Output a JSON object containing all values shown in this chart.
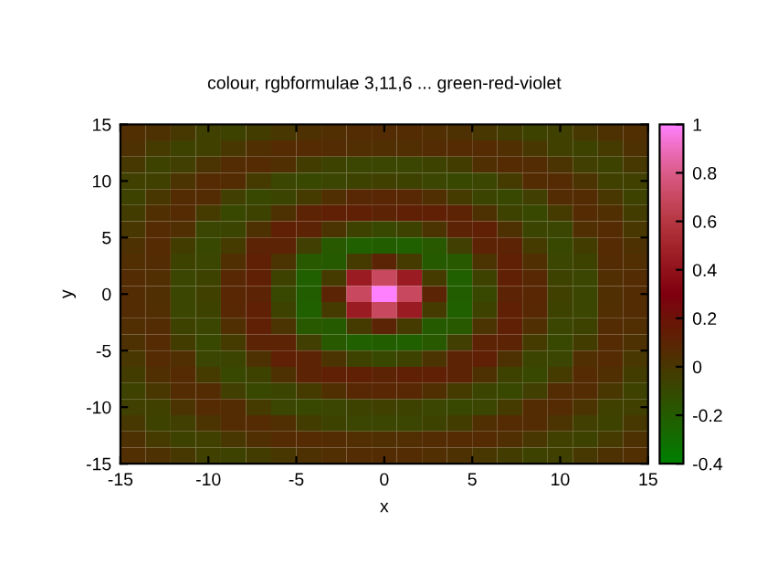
{
  "chart_data": {
    "type": "heatmap",
    "title": "colour, rgbformulae 3,11,6 ... green-red-violet",
    "xlabel": "x",
    "ylabel": "y",
    "xlim": [
      -15,
      15
    ],
    "ylim": [
      -15,
      15
    ],
    "xticks": [
      -15,
      -10,
      -5,
      0,
      5,
      10,
      15
    ],
    "yticks": [
      -15,
      -10,
      -5,
      0,
      5,
      10,
      15
    ],
    "clim": [
      -0.4,
      1
    ],
    "cticks": [
      -0.4,
      -0.2,
      0,
      0.2,
      0.4,
      0.6,
      0.8,
      1
    ],
    "grid": false,
    "cells": [
      [
        0.05,
        0.03,
        -0.01,
        -0.05,
        -0.06,
        -0.03,
        0.0,
        0.03,
        0.05,
        0.06,
        0.06,
        0.06,
        0.05,
        0.03,
        0.0,
        -0.03,
        -0.06,
        -0.05,
        -0.01,
        0.03,
        0.05
      ],
      [
        0.03,
        -0.02,
        -0.06,
        -0.05,
        0.0,
        0.04,
        0.07,
        0.07,
        0.06,
        0.05,
        0.04,
        0.05,
        0.06,
        0.07,
        0.07,
        0.04,
        0.0,
        -0.05,
        -0.06,
        -0.02,
        0.03
      ],
      [
        -0.01,
        -0.06,
        -0.04,
        0.02,
        0.06,
        0.07,
        0.04,
        -0.03,
        -0.06,
        -0.08,
        -0.08,
        -0.08,
        -0.06,
        -0.03,
        0.04,
        0.07,
        0.06,
        0.02,
        -0.04,
        -0.06,
        -0.01
      ],
      [
        -0.05,
        -0.05,
        0.02,
        0.07,
        0.06,
        -0.02,
        -0.08,
        -0.09,
        -0.08,
        -0.06,
        -0.05,
        -0.06,
        -0.08,
        -0.09,
        -0.08,
        -0.02,
        0.06,
        0.07,
        0.02,
        -0.05,
        -0.05
      ],
      [
        -0.06,
        0.0,
        0.06,
        0.06,
        -0.04,
        -0.09,
        -0.07,
        -0.02,
        0.04,
        0.08,
        0.09,
        0.08,
        0.04,
        -0.02,
        -0.07,
        -0.09,
        -0.04,
        0.06,
        0.06,
        0.0,
        -0.06
      ],
      [
        -0.03,
        0.04,
        0.07,
        -0.02,
        -0.09,
        -0.06,
        0.03,
        0.11,
        0.13,
        0.12,
        0.11,
        0.12,
        0.13,
        0.11,
        0.03,
        -0.06,
        -0.09,
        -0.02,
        0.07,
        0.04,
        -0.03
      ],
      [
        0.0,
        0.07,
        0.04,
        -0.08,
        -0.07,
        0.03,
        0.12,
        0.11,
        0.02,
        -0.06,
        -0.09,
        -0.06,
        0.02,
        0.11,
        0.12,
        0.03,
        -0.07,
        -0.08,
        0.04,
        0.07,
        0.0
      ],
      [
        0.03,
        0.07,
        -0.03,
        -0.09,
        -0.02,
        0.11,
        0.11,
        -0.04,
        -0.18,
        -0.22,
        -0.21,
        -0.22,
        -0.18,
        -0.04,
        0.11,
        0.11,
        -0.02,
        -0.09,
        -0.03,
        0.07,
        0.03
      ],
      [
        0.05,
        0.06,
        -0.06,
        -0.08,
        0.04,
        0.13,
        0.02,
        -0.18,
        -0.19,
        -0.02,
        0.1,
        -0.02,
        -0.19,
        -0.18,
        0.02,
        0.13,
        0.04,
        -0.08,
        -0.06,
        0.06,
        0.05
      ],
      [
        0.06,
        0.05,
        -0.08,
        -0.06,
        0.08,
        0.12,
        -0.06,
        -0.22,
        -0.02,
        0.45,
        0.69,
        0.45,
        -0.02,
        -0.22,
        -0.06,
        0.12,
        0.08,
        -0.06,
        -0.08,
        0.05,
        0.06
      ],
      [
        0.06,
        0.04,
        -0.08,
        -0.05,
        0.09,
        0.11,
        -0.09,
        -0.21,
        0.1,
        0.69,
        1.0,
        0.69,
        0.1,
        -0.21,
        -0.09,
        0.11,
        0.09,
        -0.05,
        -0.08,
        0.04,
        0.06
      ],
      [
        0.06,
        0.05,
        -0.08,
        -0.06,
        0.08,
        0.12,
        -0.06,
        -0.22,
        -0.02,
        0.45,
        0.69,
        0.45,
        -0.02,
        -0.22,
        -0.06,
        0.12,
        0.08,
        -0.06,
        -0.08,
        0.05,
        0.06
      ],
      [
        0.05,
        0.06,
        -0.06,
        -0.08,
        0.04,
        0.13,
        0.02,
        -0.18,
        -0.19,
        -0.02,
        0.1,
        -0.02,
        -0.19,
        -0.18,
        0.02,
        0.13,
        0.04,
        -0.08,
        -0.06,
        0.06,
        0.05
      ],
      [
        0.03,
        0.07,
        -0.03,
        -0.09,
        -0.02,
        0.11,
        0.11,
        -0.04,
        -0.18,
        -0.22,
        -0.21,
        -0.22,
        -0.18,
        -0.04,
        0.11,
        0.11,
        -0.02,
        -0.09,
        -0.03,
        0.07,
        0.03
      ],
      [
        0.0,
        0.07,
        0.04,
        -0.08,
        -0.07,
        0.03,
        0.12,
        0.11,
        0.02,
        -0.06,
        -0.09,
        -0.06,
        0.02,
        0.11,
        0.12,
        0.03,
        -0.07,
        -0.08,
        0.04,
        0.07,
        0.0
      ],
      [
        -0.03,
        0.04,
        0.07,
        -0.02,
        -0.09,
        -0.06,
        0.03,
        0.11,
        0.13,
        0.12,
        0.11,
        0.12,
        0.13,
        0.11,
        0.03,
        -0.06,
        -0.09,
        -0.02,
        0.07,
        0.04,
        -0.03
      ],
      [
        -0.06,
        0.0,
        0.06,
        0.06,
        -0.04,
        -0.09,
        -0.07,
        -0.02,
        0.04,
        0.08,
        0.09,
        0.08,
        0.04,
        -0.02,
        -0.07,
        -0.09,
        -0.04,
        0.06,
        0.06,
        0.0,
        -0.06
      ],
      [
        -0.05,
        -0.05,
        0.02,
        0.07,
        0.06,
        -0.02,
        -0.08,
        -0.09,
        -0.08,
        -0.06,
        -0.05,
        -0.06,
        -0.08,
        -0.09,
        -0.08,
        -0.02,
        0.06,
        0.07,
        0.02,
        -0.05,
        -0.05
      ],
      [
        -0.01,
        -0.06,
        -0.04,
        0.02,
        0.06,
        0.07,
        0.04,
        -0.03,
        -0.06,
        -0.08,
        -0.08,
        -0.08,
        -0.06,
        -0.03,
        0.04,
        0.07,
        0.06,
        0.02,
        -0.04,
        -0.06,
        -0.01
      ],
      [
        0.03,
        -0.02,
        -0.06,
        -0.05,
        0.0,
        0.04,
        0.07,
        0.07,
        0.06,
        0.05,
        0.04,
        0.05,
        0.06,
        0.07,
        0.07,
        0.04,
        0.0,
        -0.05,
        -0.06,
        -0.02,
        0.03
      ],
      [
        0.05,
        0.03,
        -0.01,
        -0.05,
        -0.06,
        -0.03,
        0.0,
        0.03,
        0.05,
        0.06,
        0.06,
        0.06,
        0.05,
        0.03,
        0.0,
        -0.03,
        -0.06,
        -0.05,
        -0.01,
        0.03,
        0.05
      ]
    ]
  }
}
